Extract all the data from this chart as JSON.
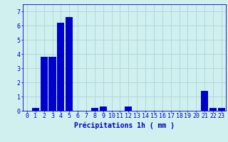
{
  "values": [
    0,
    0.2,
    3.8,
    3.8,
    6.2,
    6.6,
    0,
    0,
    0.2,
    0.3,
    0,
    0,
    0.3,
    0,
    0,
    0,
    0,
    0,
    0,
    0,
    0,
    1.4,
    0.2,
    0.2
  ],
  "bar_color": "#0000cc",
  "background_color": "#d0f0f0",
  "grid_color": "#b0d8d8",
  "axis_color": "#0000bb",
  "xlabel": "Précipitations 1h ( mm )",
  "ylim": [
    0,
    7.5
  ],
  "yticks": [
    0,
    1,
    2,
    3,
    4,
    5,
    6,
    7
  ],
  "xlabel_fontsize": 7,
  "tick_fontsize": 6,
  "fig_width": 3.2,
  "fig_height": 2.0,
  "dpi": 100
}
